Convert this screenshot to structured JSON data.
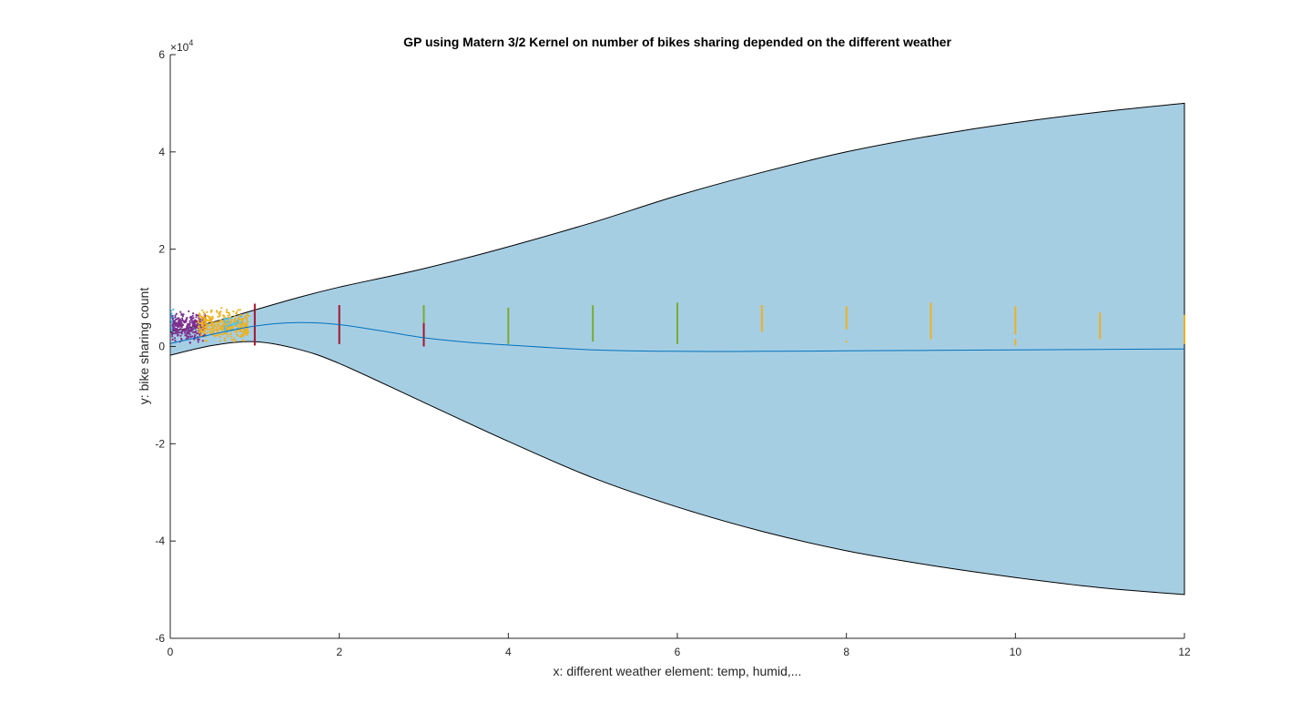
{
  "chart_data": {
    "type": "line",
    "title": "GP using Matern 3/2 Kernel on number of bikes sharing depended on the different weather",
    "xlabel": "x: different weather element: temp, humid,...",
    "ylabel": "y: bike sharing count",
    "xlim": [
      0,
      12
    ],
    "ylim": [
      -60000,
      60000
    ],
    "y_exponent_label": "×10",
    "y_exponent_power": "4",
    "x_ticks": [
      0,
      2,
      4,
      6,
      8,
      10,
      12
    ],
    "x_tick_labels": [
      "0",
      "2",
      "4",
      "6",
      "8",
      "10",
      "12"
    ],
    "y_ticks": [
      -60000,
      -40000,
      -20000,
      0,
      20000,
      40000,
      60000
    ],
    "y_tick_labels": [
      "-6",
      "-4",
      "-2",
      "0",
      "2",
      "4",
      "6"
    ],
    "grid": false,
    "colors": {
      "band_fill": "#a6cee3",
      "band_edge": "#000000",
      "mean_line": "#0072bd",
      "purple": "#7e2f8e",
      "orange": "#edb120",
      "dark_red": "#a2142f",
      "green": "#77ac30",
      "light_blue": "#4dbeee"
    },
    "series": [
      {
        "role": "upper_bound",
        "x": [
          0,
          0.5,
          1,
          1.5,
          2,
          3,
          4,
          5,
          6,
          7,
          8,
          9,
          10,
          11,
          12
        ],
        "y": [
          3000,
          5000,
          7500,
          10000,
          12200,
          16000,
          20500,
          25500,
          31000,
          35800,
          40000,
          43300,
          46000,
          48200,
          50000
        ]
      },
      {
        "role": "lower_bound",
        "x": [
          0,
          0.5,
          1,
          1.5,
          2,
          3,
          4,
          5,
          6,
          7,
          8,
          9,
          10,
          11,
          12
        ],
        "y": [
          -1800,
          200,
          1000,
          -500,
          -3500,
          -11500,
          -19500,
          -27000,
          -33000,
          -38000,
          -42000,
          -45000,
          -47500,
          -49600,
          -51000
        ]
      },
      {
        "role": "mean",
        "x": [
          0,
          0.5,
          1,
          1.5,
          2,
          2.5,
          3,
          3.5,
          4,
          5,
          6,
          7,
          8,
          9,
          10,
          11,
          12
        ],
        "y": [
          600,
          2500,
          4200,
          4900,
          4500,
          3200,
          1800,
          900,
          300,
          -700,
          -1000,
          -1000,
          -900,
          -800,
          -700,
          -600,
          -500
        ]
      }
    ],
    "vertical_segments": [
      {
        "x": 1,
        "y0": 200,
        "y1": 8800,
        "color": "dark_red"
      },
      {
        "x": 2,
        "y0": 500,
        "y1": 8500,
        "color": "dark_red"
      },
      {
        "x": 3,
        "y0": 3500,
        "y1": 8500,
        "color": "green"
      },
      {
        "x": 3,
        "y0": 0,
        "y1": 4800,
        "color": "dark_red"
      },
      {
        "x": 4,
        "y0": 500,
        "y1": 8000,
        "color": "green"
      },
      {
        "x": 5,
        "y0": 1000,
        "y1": 8500,
        "color": "green"
      },
      {
        "x": 6,
        "y0": 500,
        "y1": 9000,
        "color": "green"
      },
      {
        "x": 7,
        "y0": 3000,
        "y1": 8500,
        "color": "orange"
      },
      {
        "x": 8,
        "y0": 3500,
        "y1": 8300,
        "color": "orange"
      },
      {
        "x": 8,
        "y0": 800,
        "y1": 1200,
        "color": "orange"
      },
      {
        "x": 9,
        "y0": 1500,
        "y1": 9000,
        "color": "orange"
      },
      {
        "x": 10,
        "y0": 2500,
        "y1": 8300,
        "color": "orange"
      },
      {
        "x": 10,
        "y0": 200,
        "y1": 1500,
        "color": "orange"
      },
      {
        "x": 11,
        "y0": 1500,
        "y1": 7000,
        "color": "orange"
      },
      {
        "x": 12,
        "y0": 500,
        "y1": 6500,
        "color": "orange"
      }
    ],
    "scatter_clusters": [
      {
        "color": "light_blue",
        "x_range": [
          0,
          0.05
        ],
        "y_range": [
          1500,
          8500
        ],
        "n": 40
      },
      {
        "color": "purple",
        "x_range": [
          0.02,
          0.42
        ],
        "y_range": [
          200,
          8000
        ],
        "n": 320
      },
      {
        "color": "orange",
        "x_range": [
          0.33,
          0.93
        ],
        "y_range": [
          0,
          8500
        ],
        "n": 360
      },
      {
        "color": "light_blue",
        "x_range": [
          0.6,
          0.85
        ],
        "y_range": [
          2000,
          7000
        ],
        "n": 30
      }
    ]
  }
}
